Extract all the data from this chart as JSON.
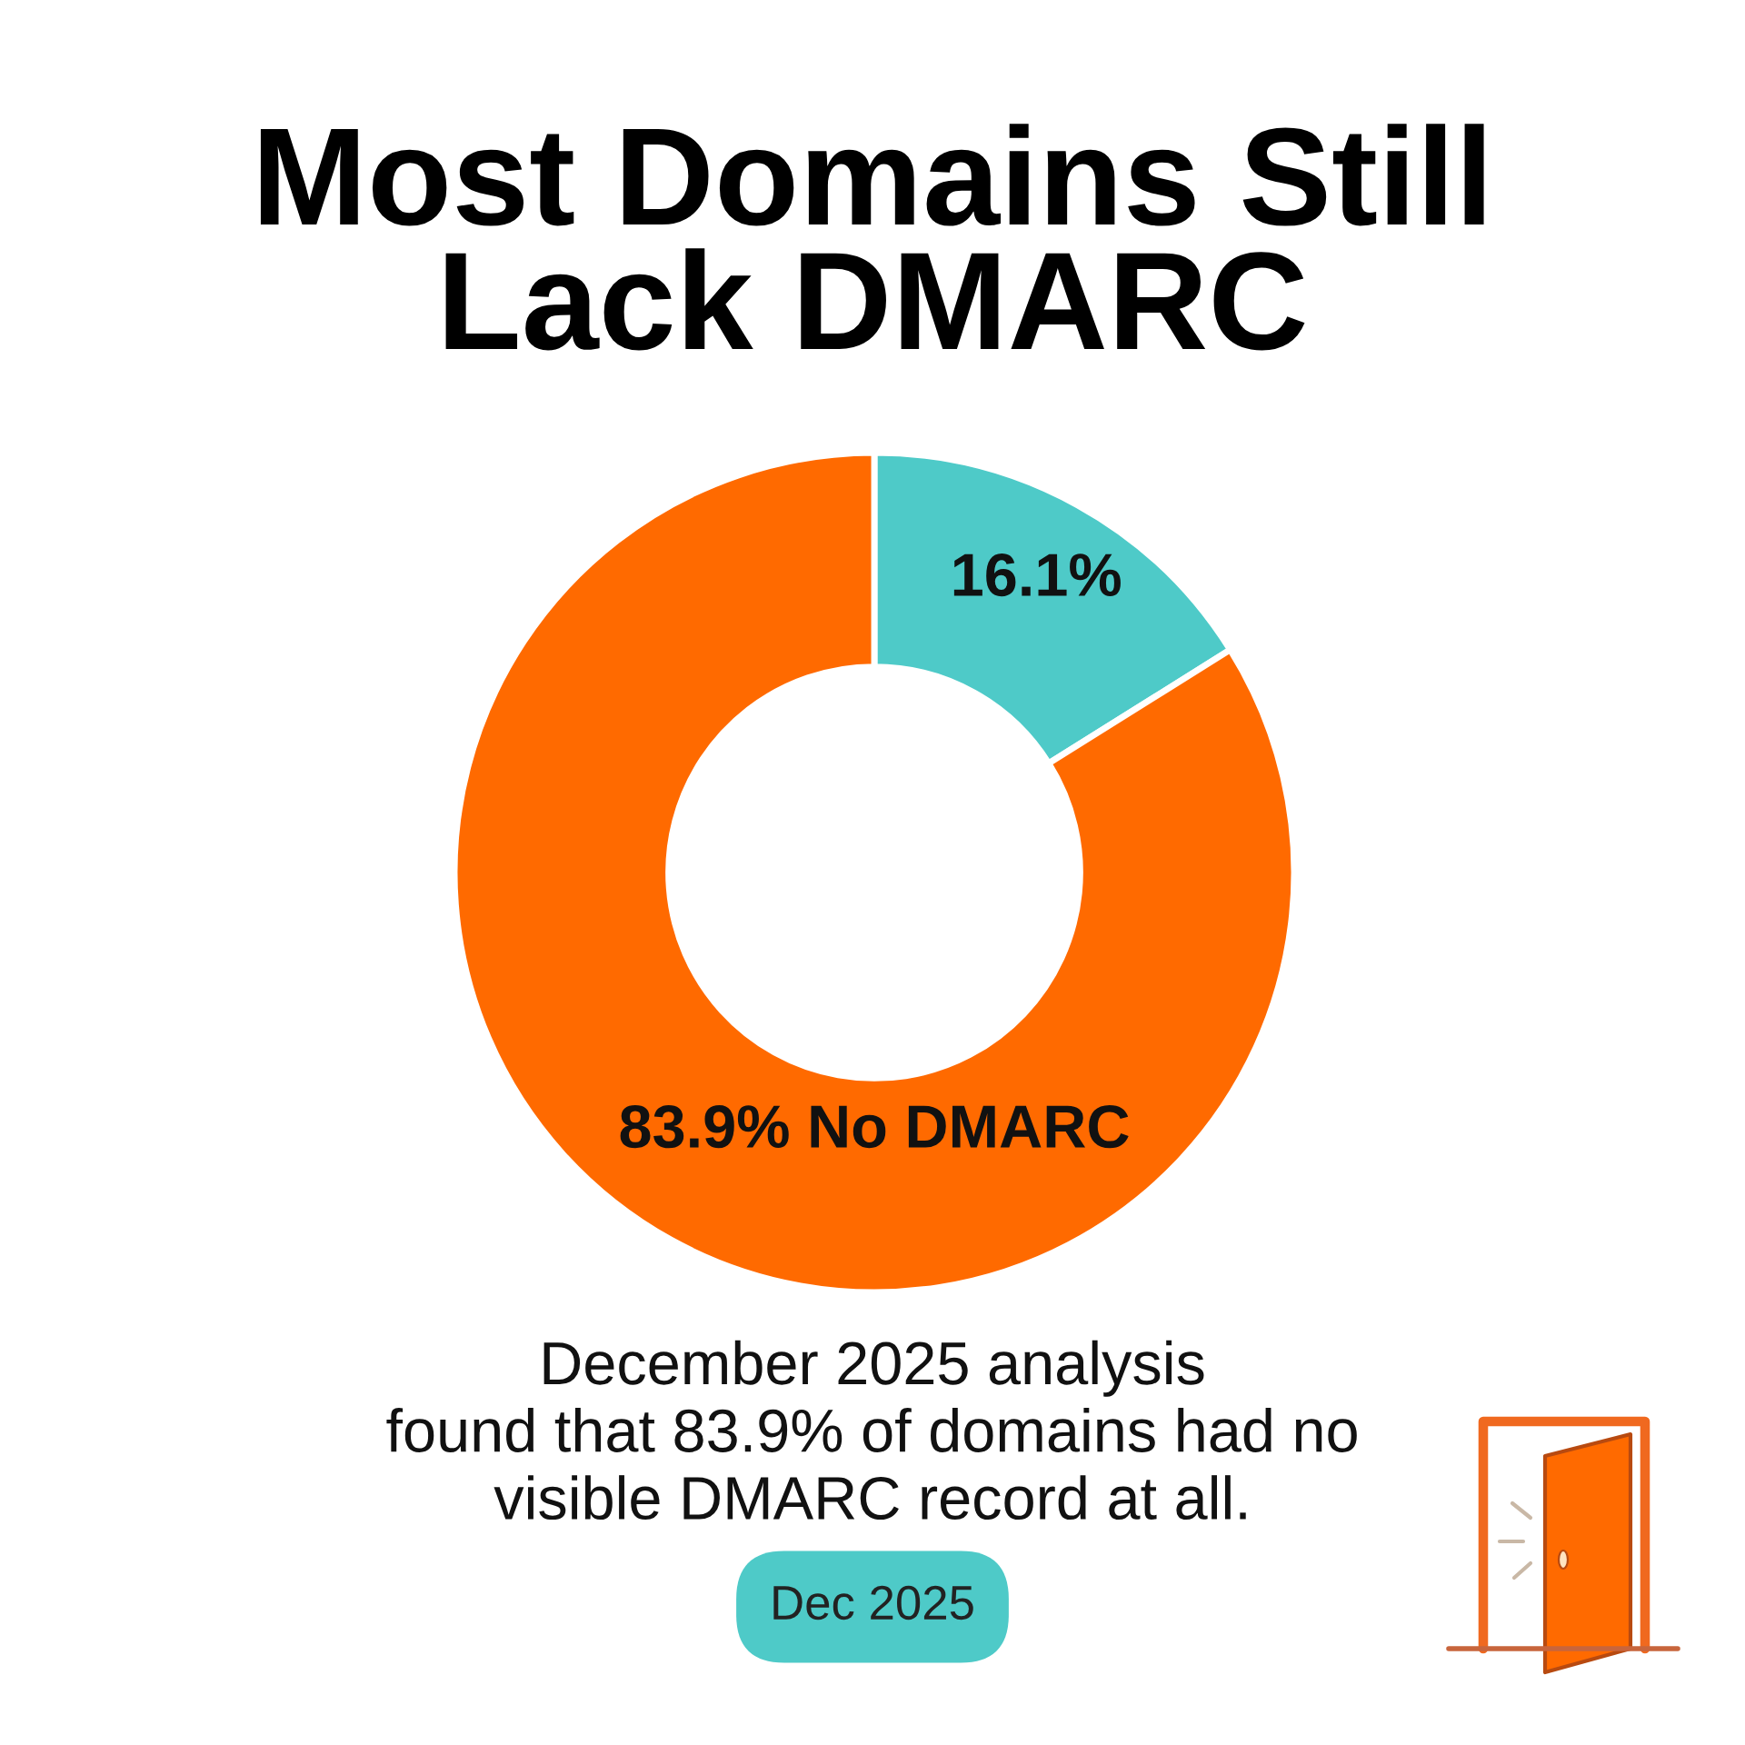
{
  "chart_data": {
    "type": "donut",
    "title": "Most Domains Still\nLack DMARC",
    "categories": [
      null,
      "No DMARC"
    ],
    "values": [
      16.1,
      83.9
    ],
    "colors": [
      "#4ecac8",
      "#ff6a00"
    ],
    "value_labels": [
      "16.1%",
      "83.9%"
    ],
    "annotations": [
      "December 2025 analysis\nfound that 83.9% of domains had no\nvisible DMARC record at all.",
      "Dec 2025"
    ]
  }
}
